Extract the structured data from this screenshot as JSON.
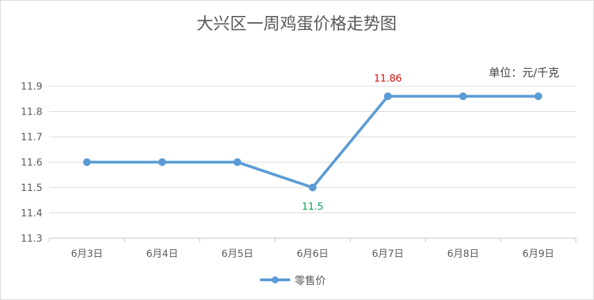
{
  "chart_data": {
    "type": "line",
    "title": "大兴区一周鸡蛋价格走势图",
    "unit_note": "单位：元/千克",
    "categories": [
      "6月3日",
      "6月4日",
      "6月5日",
      "6月6日",
      "6月7日",
      "6月8日",
      "6月9日"
    ],
    "series": [
      {
        "name": "零售价",
        "values": [
          11.6,
          11.6,
          11.6,
          11.5,
          11.86,
          11.86,
          11.86
        ],
        "color": "#5b9bd5"
      }
    ],
    "ylim": [
      11.3,
      11.9
    ],
    "yticks": [
      "11.3",
      "11.4",
      "11.5",
      "11.6",
      "11.7",
      "11.8",
      "11.9"
    ],
    "data_labels": [
      {
        "index": 3,
        "text": "11.5",
        "color": "#00a651"
      },
      {
        "index": 4,
        "text": "11.86",
        "color": "#e00000"
      }
    ],
    "grid": true,
    "legend_position": "bottom"
  }
}
